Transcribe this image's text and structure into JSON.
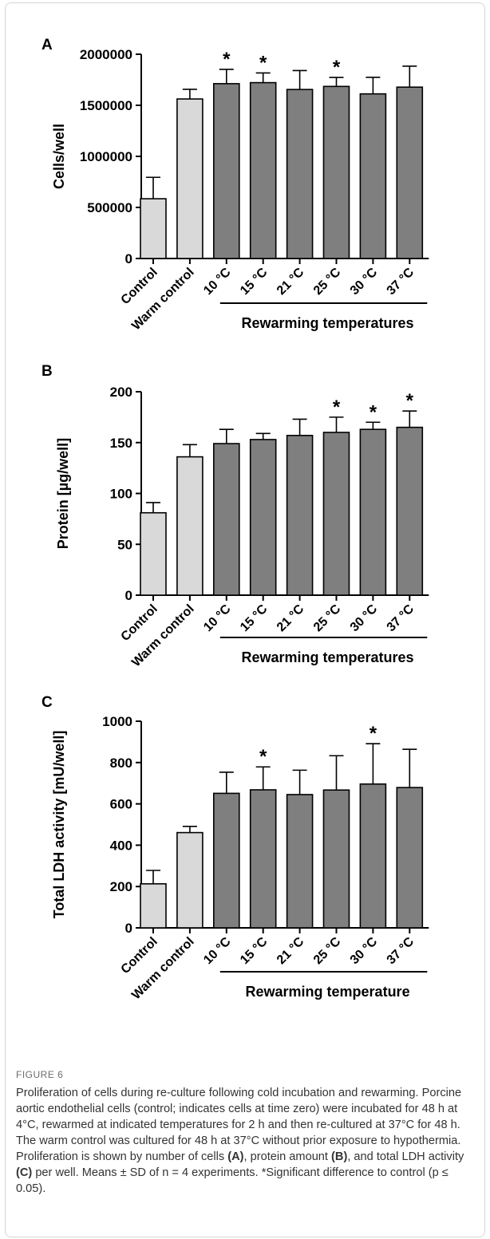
{
  "figure_label": "FIGURE 6",
  "caption": {
    "parts": [
      {
        "t": "Proliferation of cells during re-culture following cold incubation and rewarming. Porcine aortic endothelial cells (control; indicates cells at time zero) were incubated for 48 h at 4°C, rewarmed at indicated temperatures for 2 h and then re-cultured at 37°C for 48 h. The warm control was cultured for 48 h at 37°C without prior exposure to hypothermia. Proliferation is shown by number of cells ",
        "b": false
      },
      {
        "t": "(A)",
        "b": true
      },
      {
        "t": ", protein amount ",
        "b": false
      },
      {
        "t": "(B)",
        "b": true
      },
      {
        "t": ", and total LDH activity ",
        "b": false
      },
      {
        "t": "(C)",
        "b": true
      },
      {
        "t": " per well. Means ± SD of n = 4 experiments. *Significant difference to control (p ≤ 0.05).",
        "b": false
      }
    ]
  },
  "colors": {
    "control_bar": "#d9d9d9",
    "rewarming_bar": "#7f7f7f",
    "stroke": "#000000"
  },
  "chart_data": [
    {
      "type": "bar",
      "panel": "A",
      "ylabel": "Cells/well",
      "ylim": [
        0,
        2000000
      ],
      "yticks": [
        0,
        500000,
        1000000,
        1500000,
        2000000
      ],
      "ytick_labels": [
        "0",
        "500000",
        "1000000",
        "1500000",
        "2000000"
      ],
      "categories": [
        "Control",
        "Warm control",
        "10 °C",
        "15 °C",
        "21 °C",
        "25 °C",
        "30 °C",
        "37 °C"
      ],
      "values": [
        585000,
        1562000,
        1712000,
        1722000,
        1655000,
        1685000,
        1612000,
        1678000
      ],
      "errors": [
        210000,
        95000,
        140000,
        95000,
        185000,
        88000,
        162000,
        205000
      ],
      "significant": [
        false,
        false,
        true,
        true,
        false,
        true,
        false,
        false
      ],
      "annotation_symbol": "*",
      "group_label": "Rewarming temperatures"
    },
    {
      "type": "bar",
      "panel": "B",
      "ylabel": "Protein [µg/well]",
      "ylim": [
        0,
        200
      ],
      "yticks": [
        0,
        50,
        100,
        150,
        200
      ],
      "ytick_labels": [
        "0",
        "50",
        "100",
        "150",
        "200"
      ],
      "categories": [
        "Control",
        "Warm control",
        "10 °C",
        "15 °C",
        "21 °C",
        "25 °C",
        "30 °C",
        "37 °C"
      ],
      "values": [
        81,
        136,
        149,
        153,
        157,
        160,
        163,
        165
      ],
      "errors": [
        10,
        12,
        14,
        6,
        16,
        15,
        7,
        16
      ],
      "significant": [
        false,
        false,
        false,
        false,
        false,
        true,
        true,
        true
      ],
      "annotation_symbol": "*",
      "group_label": "Rewarming temperatures"
    },
    {
      "type": "bar",
      "panel": "C",
      "ylabel": "Total LDH activity [mU/well]",
      "ylim": [
        0,
        1000
      ],
      "yticks": [
        0,
        200,
        400,
        600,
        800,
        1000
      ],
      "ytick_labels": [
        "0",
        "200",
        "400",
        "600",
        "800",
        "1000"
      ],
      "categories": [
        "Control",
        "Warm control",
        "10 °C",
        "15 °C",
        "21 °C",
        "25 °C",
        "30 °C",
        "37 °C"
      ],
      "values": [
        213,
        461,
        651,
        668,
        645,
        667,
        696,
        679
      ],
      "errors": [
        65,
        30,
        102,
        111,
        118,
        166,
        195,
        185
      ],
      "significant": [
        false,
        false,
        false,
        true,
        false,
        false,
        true,
        false
      ],
      "annotation_symbol": "*",
      "group_label": "Rewarming temperature"
    }
  ]
}
